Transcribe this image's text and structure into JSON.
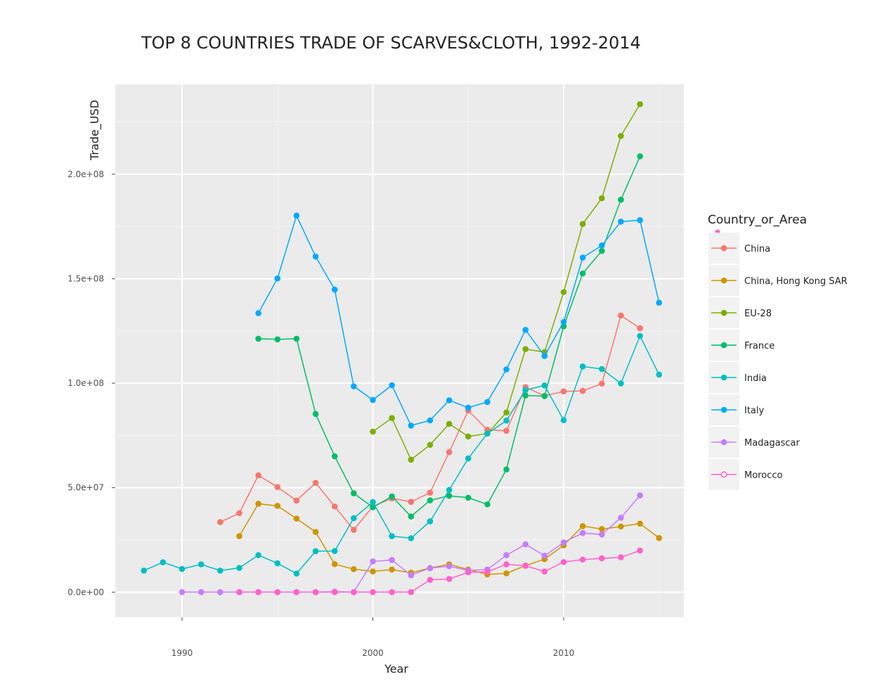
{
  "chart_data": {
    "type": "line",
    "title": "TOP 8 COUNTRIES TRADE OF SCARVES&CLOTH, 1992-2014",
    "xlabel": "Year",
    "ylabel": "Trade_USD",
    "xlim": [
      1986.5,
      2016.3
    ],
    "ylim": [
      -12000000,
      243000000
    ],
    "x_ticks": [
      1990,
      2000,
      2010
    ],
    "x_tick_labels": [
      "1990",
      "2000",
      "2010"
    ],
    "y_ticks": [
      0,
      50000000,
      100000000,
      150000000,
      200000000
    ],
    "y_tick_labels": [
      "0.0e+00",
      "5.0e+07",
      "1.0e+08",
      "1.5e+08",
      "2.0e+08"
    ],
    "grid": true,
    "legend": {
      "title": "Country_or_Area",
      "position": "right"
    },
    "series": [
      {
        "name": "China",
        "color": "#F8766D",
        "x": [
          1992,
          1993,
          1994,
          1995,
          1996,
          1997,
          1998,
          1999,
          2000,
          2001,
          2002,
          2003,
          2004,
          2005,
          2006,
          2007,
          2008,
          2009,
          2010,
          2011,
          2012,
          2013,
          2014
        ],
        "y": [
          33500000,
          37800000,
          55900000,
          50300000,
          43800000,
          52300000,
          41000000,
          29800000,
          41100000,
          44900000,
          43200000,
          47600000,
          67000000,
          86900000,
          77700000,
          77200000,
          98100000,
          93900000,
          96100000,
          96300000,
          99800000,
          132400000,
          126300000
        ]
      },
      {
        "name": "China, Hong Kong SAR",
        "color": "#CD9600",
        "x": [
          1993,
          1994,
          1995,
          1996,
          1997,
          1998,
          1999,
          2000,
          2001,
          2002,
          2003,
          2004,
          2005,
          2006,
          2007,
          2008,
          2009,
          2010,
          2011,
          2012,
          2013,
          2014,
          2015
        ],
        "y": [
          26800000,
          42300000,
          41300000,
          35200000,
          28800000,
          13400000,
          11000000,
          9900000,
          10800000,
          9300000,
          11500000,
          13300000,
          10800000,
          8500000,
          9000000,
          12700000,
          15800000,
          22400000,
          31600000,
          30200000,
          31400000,
          32800000,
          25900000
        ]
      },
      {
        "name": "EU-28",
        "color": "#7CAE00",
        "x": [
          2000,
          2001,
          2002,
          2003,
          2004,
          2005,
          2006,
          2007,
          2008,
          2009,
          2010,
          2011,
          2012,
          2013,
          2014
        ],
        "y": [
          76800000,
          83300000,
          63400000,
          70500000,
          80500000,
          74500000,
          75900000,
          86000000,
          116300000,
          114900000,
          143600000,
          176200000,
          188500000,
          218300000,
          233500000
        ]
      },
      {
        "name": "France",
        "color": "#00BE67",
        "x": [
          1994,
          1995,
          1996,
          1997,
          1998,
          1999,
          2000,
          2001,
          2002,
          2003,
          2004,
          2005,
          2006,
          2007,
          2008,
          2009,
          2010,
          2011,
          2012,
          2013,
          2014
        ],
        "y": [
          121300000,
          121000000,
          121300000,
          85300000,
          65000000,
          47300000,
          40600000,
          45800000,
          36200000,
          43900000,
          46100000,
          45200000,
          42000000,
          58700000,
          94100000,
          93800000,
          127200000,
          152500000,
          163300000,
          187800000,
          208600000
        ]
      },
      {
        "name": "India",
        "color": "#00BFC4",
        "x": [
          1988,
          1989,
          1990,
          1991,
          1992,
          1993,
          1994,
          1995,
          1996,
          1997,
          1998,
          1999,
          2000,
          2001,
          2002,
          2003,
          2004,
          2005,
          2006,
          2007,
          2008,
          2009,
          2010,
          2011,
          2012,
          2013,
          2014,
          2015
        ],
        "y": [
          10300000,
          14300000,
          11100000,
          13300000,
          10300000,
          11600000,
          17700000,
          13800000,
          8900000,
          19600000,
          19700000,
          35400000,
          43100000,
          26800000,
          25800000,
          33900000,
          48900000,
          64000000,
          75900000,
          82100000,
          96700000,
          98900000,
          82300000,
          108000000,
          106800000,
          99900000,
          122600000,
          104100000
        ]
      },
      {
        "name": "Italy",
        "color": "#00A9FF",
        "x": [
          1994,
          1995,
          1996,
          1997,
          1998,
          1999,
          2000,
          2001,
          2002,
          2003,
          2004,
          2005,
          2006,
          2007,
          2008,
          2009,
          2010,
          2011,
          2012,
          2013,
          2014,
          2015
        ],
        "y": [
          133500000,
          150100000,
          180200000,
          160600000,
          144800000,
          98500000,
          92000000,
          99000000,
          79700000,
          82200000,
          91800000,
          88300000,
          91000000,
          106600000,
          125500000,
          113000000,
          129300000,
          160100000,
          165900000,
          177300000,
          178000000,
          138500000
        ]
      },
      {
        "name": "Madagascar",
        "color": "#C77CFF",
        "x": [
          1990,
          1991,
          1992,
          1993,
          1994,
          1995,
          1996,
          1997,
          1998,
          1999,
          2000,
          2001,
          2002,
          2003,
          2004,
          2005,
          2006,
          2007,
          2008,
          2009,
          2010,
          2011,
          2012,
          2013,
          2014
        ],
        "y": [
          0,
          0,
          0,
          0,
          0,
          0,
          0,
          0,
          200000,
          0,
          14700000,
          15400000,
          8100000,
          11500000,
          12400000,
          10400000,
          10800000,
          17700000,
          22900000,
          17400000,
          23800000,
          28300000,
          27600000,
          35600000,
          46300000
        ]
      },
      {
        "name": "Morocco",
        "color": "#FF61CC",
        "x": [
          1993,
          1994,
          1995,
          1996,
          1997,
          1998,
          1999,
          2000,
          2001,
          2002,
          2003,
          2004,
          2005,
          2006,
          2007,
          2008,
          2009,
          2010,
          2011,
          2012,
          2013,
          2014
        ],
        "y": [
          0,
          0,
          0,
          0,
          0,
          0,
          0,
          0,
          0,
          0,
          5900000,
          6300000,
          9500000,
          9700000,
          13300000,
          12600000,
          9900000,
          14400000,
          15600000,
          16200000,
          16700000,
          19900000
        ]
      }
    ]
  }
}
